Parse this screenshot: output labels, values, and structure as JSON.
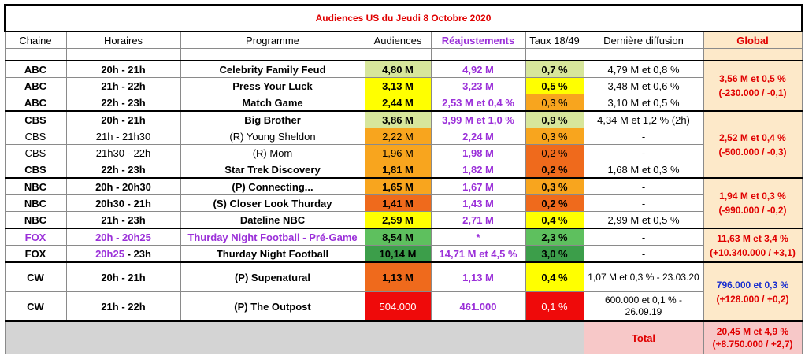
{
  "title": "Audiences US du Jeudi 8  Octobre 2020",
  "headers": {
    "chaine": "Chaine",
    "horaires": "Horaires",
    "programme": "Programme",
    "audiences": "Audiences",
    "reajustements": "Réajustements",
    "taux": "Taux 18/49",
    "derniere": "Dernière diffusion",
    "global": "Global"
  },
  "rows": [
    {
      "chaine": "ABC",
      "horaires": "20h - 21h",
      "programme": "Celebrity Family Feud",
      "audiences": "4,80 M",
      "reaj": "4,92 M",
      "taux": "0,7 %",
      "derniere": "4,79 M et 0,8 %"
    },
    {
      "chaine": "ABC",
      "horaires": "21h - 22h",
      "programme": "Press Your Luck",
      "audiences": "3,13 M",
      "reaj": "3,23 M",
      "taux": "0,5 %",
      "derniere": "3,48 M et 0,6 %"
    },
    {
      "chaine": "ABC",
      "horaires": "22h - 23h",
      "programme": "Match Game",
      "audiences": "2,44 M",
      "reaj": "2,53 M et 0,4 %",
      "taux": "0,3 %",
      "derniere": "3,10 M et 0,5 %"
    },
    {
      "chaine": "CBS",
      "horaires": "20h - 21h",
      "programme": "Big Brother",
      "audiences": "3,86 M",
      "reaj": "3,99 M et 1,0 %",
      "taux": "0,9 %",
      "derniere": "4,34 M et 1,2 % (2h)"
    },
    {
      "chaine": "CBS",
      "horaires": "21h - 21h30",
      "programme": "(R) Young Sheldon",
      "audiences": "2,22 M",
      "reaj": "2,24 M",
      "taux": "0,3 %",
      "derniere": "-"
    },
    {
      "chaine": "CBS",
      "horaires": "21h30 - 22h",
      "programme": "(R) Mom",
      "audiences": "1,96 M",
      "reaj": "1,98 M",
      "taux": "0,2 %",
      "derniere": "-"
    },
    {
      "chaine": "CBS",
      "horaires": "22h - 23h",
      "programme": "Star Trek Discovery",
      "audiences": "1,81 M",
      "reaj": "1,82 M",
      "taux": "0,2 %",
      "derniere": "1,68 M et 0,3 %"
    },
    {
      "chaine": "NBC",
      "horaires": "20h - 20h30",
      "programme": "(P) Connecting...",
      "audiences": "1,65 M",
      "reaj": "1,67 M",
      "taux": "0,3 %",
      "derniere": "-"
    },
    {
      "chaine": "NBC",
      "horaires": "20h30 - 21h",
      "programme": "(S) Closer Look Thurday",
      "audiences": "1,41 M",
      "reaj": "1,43 M",
      "taux": "0,2 %",
      "derniere": "-"
    },
    {
      "chaine": "NBC",
      "horaires": "21h - 23h",
      "programme": "Dateline NBC",
      "audiences": "2,59 M",
      "reaj": "2,71 M",
      "taux": "0,4 %",
      "derniere": "2,99 M et 0,5 %"
    },
    {
      "chaine": "FOX",
      "horaires": "20h - 20h25",
      "programme": "Thurday Night Football - Pré-Game",
      "audiences": "8,54 M",
      "reaj": "*",
      "taux": "2,3 %",
      "derniere": "-"
    },
    {
      "chaine": "FOX",
      "horaires_a": "20h25",
      "horaires_b": " - 23h",
      "programme": "Thurday Night Football",
      "audiences": "10,14 M",
      "reaj": "14,71 M et 4,5 %",
      "taux": "3,0 %",
      "derniere": "-"
    },
    {
      "chaine": "CW",
      "horaires": "20h - 21h",
      "programme": "(P) Supenatural",
      "audiences": "1,13 M",
      "reaj": "1,13 M",
      "taux": "0,4 %",
      "derniere": "1,07 M et 0,3 % - 23.03.20"
    },
    {
      "chaine": "CW",
      "horaires": "21h - 22h",
      "programme": "(P) The Outpost",
      "audiences": "504.000",
      "reaj": "461.000",
      "taux": "0,1 %",
      "derniere": "600.000 et 0,1 % - 26.09.19"
    }
  ],
  "global": {
    "abc": {
      "l1": "3,56 M et 0,5 %",
      "l2": "(-230.000 / -0,1)"
    },
    "cbs": {
      "l1": "2,52 M et 0,4 %",
      "l2": "(-500.000 / -0,3)"
    },
    "nbc": {
      "l1": "1,94 M et 0,3 %",
      "l2": "(-990.000 / -0,2)"
    },
    "fox": {
      "l1": "11,63 M et 3,4 %",
      "l2": "(+10.340.000 / +3,1)"
    },
    "cw": {
      "l1": "796.000 et 0,3 %",
      "l2": "(+128.000 / +0,2)"
    }
  },
  "total": {
    "label": "Total",
    "l1": "20,45 M et 4,9 %",
    "l2": "(+8.750.000 / +2,7)"
  },
  "colors": {
    "light_green": "#d7e69b",
    "yellow": "#ffff00",
    "orange": "#f8a51e",
    "dark_orange": "#ef6a1c",
    "red": "#ef0a0a",
    "green": "#5ec05e",
    "dark_green": "#3c9e4a",
    "global_bg": "#fde9c9",
    "purple": "#9b30d9",
    "title_red": "#e00000"
  }
}
